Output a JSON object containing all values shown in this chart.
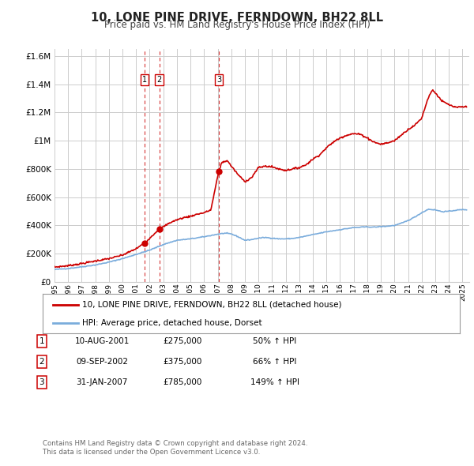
{
  "title": "10, LONE PINE DRIVE, FERNDOWN, BH22 8LL",
  "subtitle": "Price paid vs. HM Land Registry's House Price Index (HPI)",
  "legend_label_red": "10, LONE PINE DRIVE, FERNDOWN, BH22 8LL (detached house)",
  "legend_label_blue": "HPI: Average price, detached house, Dorset",
  "footer1": "Contains HM Land Registry data © Crown copyright and database right 2024.",
  "footer2": "This data is licensed under the Open Government Licence v3.0.",
  "transactions": [
    {
      "num": 1,
      "date": "10-AUG-2001",
      "price": 275000,
      "pct": "50%",
      "dir": "↑",
      "year": 2001.61
    },
    {
      "num": 2,
      "date": "09-SEP-2002",
      "price": 375000,
      "pct": "66%",
      "dir": "↑",
      "year": 2002.7
    },
    {
      "num": 3,
      "date": "31-JAN-2007",
      "price": 785000,
      "pct": "149%",
      "dir": "↑",
      "year": 2007.08
    }
  ],
  "red_color": "#cc0000",
  "blue_color": "#7aacdc",
  "dashed_color": "#cc0000",
  "background_color": "#ffffff",
  "grid_color": "#cccccc",
  "ylim": [
    0,
    1650000
  ],
  "xlim_start": 1995.0,
  "xlim_end": 2025.5,
  "hpi_keypoints": [
    [
      1995.0,
      88000
    ],
    [
      1996.0,
      95000
    ],
    [
      1997.0,
      107000
    ],
    [
      1998.0,
      120000
    ],
    [
      1999.0,
      140000
    ],
    [
      2000.0,
      165000
    ],
    [
      2001.0,
      195000
    ],
    [
      2002.0,
      225000
    ],
    [
      2003.0,
      265000
    ],
    [
      2004.0,
      295000
    ],
    [
      2005.0,
      305000
    ],
    [
      2006.0,
      320000
    ],
    [
      2007.0,
      338000
    ],
    [
      2007.5,
      345000
    ],
    [
      2008.0,
      340000
    ],
    [
      2008.5,
      320000
    ],
    [
      2009.0,
      295000
    ],
    [
      2009.5,
      300000
    ],
    [
      2010.0,
      310000
    ],
    [
      2010.5,
      315000
    ],
    [
      2011.0,
      310000
    ],
    [
      2011.5,
      305000
    ],
    [
      2012.0,
      305000
    ],
    [
      2012.5,
      308000
    ],
    [
      2013.0,
      315000
    ],
    [
      2014.0,
      335000
    ],
    [
      2015.0,
      355000
    ],
    [
      2016.0,
      370000
    ],
    [
      2017.0,
      385000
    ],
    [
      2018.0,
      390000
    ],
    [
      2018.5,
      388000
    ],
    [
      2019.0,
      392000
    ],
    [
      2019.5,
      395000
    ],
    [
      2020.0,
      400000
    ],
    [
      2020.5,
      415000
    ],
    [
      2021.0,
      435000
    ],
    [
      2021.5,
      460000
    ],
    [
      2022.0,
      490000
    ],
    [
      2022.5,
      515000
    ],
    [
      2023.0,
      510000
    ],
    [
      2023.5,
      498000
    ],
    [
      2024.0,
      500000
    ],
    [
      2024.5,
      508000
    ],
    [
      2025.0,
      512000
    ],
    [
      2025.3,
      512000
    ]
  ],
  "red_keypoints": [
    [
      1995.0,
      105000
    ],
    [
      1996.0,
      115000
    ],
    [
      1997.0,
      130000
    ],
    [
      1998.0,
      148000
    ],
    [
      1999.0,
      165000
    ],
    [
      2000.0,
      190000
    ],
    [
      2001.0,
      235000
    ],
    [
      2001.61,
      275000
    ],
    [
      2002.0,
      310000
    ],
    [
      2002.7,
      375000
    ],
    [
      2003.0,
      390000
    ],
    [
      2003.5,
      420000
    ],
    [
      2004.0,
      440000
    ],
    [
      2004.5,
      455000
    ],
    [
      2005.0,
      465000
    ],
    [
      2005.5,
      480000
    ],
    [
      2006.0,
      490000
    ],
    [
      2006.5,
      510000
    ],
    [
      2007.08,
      785000
    ],
    [
      2007.3,
      845000
    ],
    [
      2007.7,
      860000
    ],
    [
      2008.0,
      820000
    ],
    [
      2008.5,
      760000
    ],
    [
      2009.0,
      710000
    ],
    [
      2009.5,
      740000
    ],
    [
      2010.0,
      810000
    ],
    [
      2010.5,
      820000
    ],
    [
      2011.0,
      815000
    ],
    [
      2011.5,
      800000
    ],
    [
      2012.0,
      790000
    ],
    [
      2012.5,
      800000
    ],
    [
      2013.0,
      810000
    ],
    [
      2013.5,
      830000
    ],
    [
      2014.0,
      870000
    ],
    [
      2014.5,
      900000
    ],
    [
      2015.0,
      950000
    ],
    [
      2015.5,
      990000
    ],
    [
      2016.0,
      1020000
    ],
    [
      2016.5,
      1040000
    ],
    [
      2017.0,
      1050000
    ],
    [
      2017.5,
      1045000
    ],
    [
      2018.0,
      1020000
    ],
    [
      2018.5,
      990000
    ],
    [
      2019.0,
      975000
    ],
    [
      2019.5,
      985000
    ],
    [
      2020.0,
      1000000
    ],
    [
      2020.5,
      1040000
    ],
    [
      2021.0,
      1080000
    ],
    [
      2021.5,
      1110000
    ],
    [
      2022.0,
      1160000
    ],
    [
      2022.5,
      1310000
    ],
    [
      2022.8,
      1360000
    ],
    [
      2023.0,
      1340000
    ],
    [
      2023.5,
      1280000
    ],
    [
      2024.0,
      1255000
    ],
    [
      2024.5,
      1235000
    ],
    [
      2025.0,
      1240000
    ],
    [
      2025.3,
      1240000
    ]
  ]
}
